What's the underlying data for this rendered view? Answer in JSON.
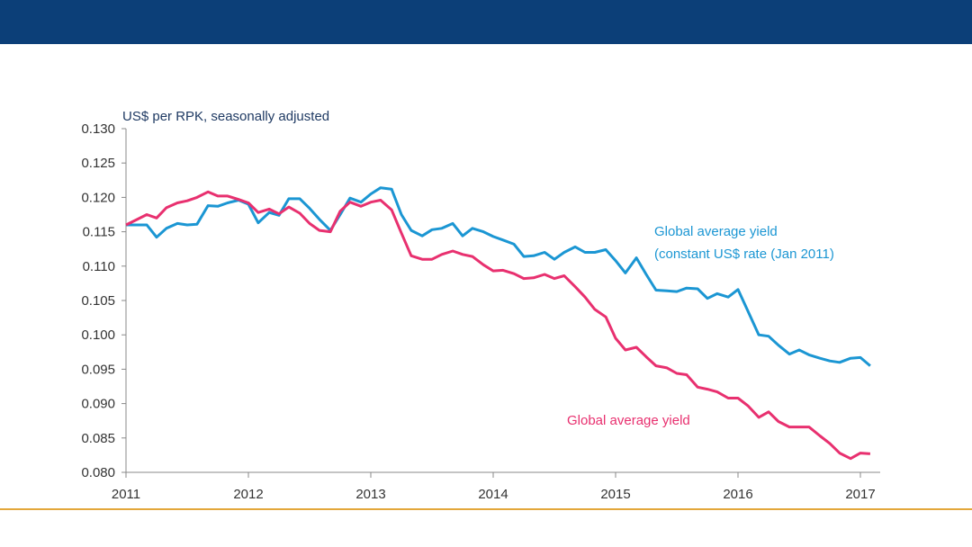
{
  "colors": {
    "banner": "#0c3f78",
    "footer_rule": "#e3a73a",
    "constant_series": "#1b96d3",
    "nominal_series": "#e8306f"
  },
  "chart_data": {
    "type": "line",
    "ylabel": "US$ per RPK, seasonally adjusted",
    "ylim": [
      0.08,
      0.13
    ],
    "yticks": [
      "0.130",
      "0.125",
      "0.120",
      "0.115",
      "0.110",
      "0.105",
      "0.100",
      "0.095",
      "0.090",
      "0.085",
      "0.080"
    ],
    "xlim": [
      2011,
      2017.2
    ],
    "xticks": [
      "2011",
      "2012",
      "2013",
      "2014",
      "2015",
      "2016",
      "2017"
    ],
    "grid": false,
    "series": [
      {
        "key": "constant",
        "label_line1": "Global average yield",
        "label_line2": "(constant US$ rate (Jan 2011)",
        "points": [
          [
            2011.0,
            0.116
          ],
          [
            2011.08,
            0.116
          ],
          [
            2011.17,
            0.116
          ],
          [
            2011.25,
            0.1142
          ],
          [
            2011.33,
            0.1155
          ],
          [
            2011.42,
            0.1162
          ],
          [
            2011.5,
            0.116
          ],
          [
            2011.58,
            0.1161
          ],
          [
            2011.67,
            0.1188
          ],
          [
            2011.75,
            0.1187
          ],
          [
            2011.83,
            0.1192
          ],
          [
            2011.92,
            0.1196
          ],
          [
            2012.0,
            0.119
          ],
          [
            2012.08,
            0.1163
          ],
          [
            2012.17,
            0.1178
          ],
          [
            2012.25,
            0.1174
          ],
          [
            2012.33,
            0.1198
          ],
          [
            2012.42,
            0.1198
          ],
          [
            2012.5,
            0.1184
          ],
          [
            2012.58,
            0.1168
          ],
          [
            2012.67,
            0.1152
          ],
          [
            2012.75,
            0.1175
          ],
          [
            2012.83,
            0.1199
          ],
          [
            2012.92,
            0.1193
          ],
          [
            2013.0,
            0.1205
          ],
          [
            2013.08,
            0.1214
          ],
          [
            2013.17,
            0.1212
          ],
          [
            2013.25,
            0.1175
          ],
          [
            2013.33,
            0.1152
          ],
          [
            2013.42,
            0.1144
          ],
          [
            2013.5,
            0.1153
          ],
          [
            2013.58,
            0.1155
          ],
          [
            2013.67,
            0.1162
          ],
          [
            2013.75,
            0.1144
          ],
          [
            2013.83,
            0.1155
          ],
          [
            2013.92,
            0.115
          ],
          [
            2014.0,
            0.1143
          ],
          [
            2014.08,
            0.1138
          ],
          [
            2014.17,
            0.1132
          ],
          [
            2014.25,
            0.1114
          ],
          [
            2014.33,
            0.1115
          ],
          [
            2014.42,
            0.112
          ],
          [
            2014.5,
            0.111
          ],
          [
            2014.58,
            0.112
          ],
          [
            2014.67,
            0.1128
          ],
          [
            2014.75,
            0.112
          ],
          [
            2014.83,
            0.112
          ],
          [
            2014.92,
            0.1124
          ],
          [
            2015.0,
            0.1108
          ],
          [
            2015.08,
            0.109
          ],
          [
            2015.17,
            0.1112
          ],
          [
            2015.25,
            0.1088
          ],
          [
            2015.33,
            0.1065
          ],
          [
            2015.42,
            0.1064
          ],
          [
            2015.5,
            0.1063
          ],
          [
            2015.58,
            0.1068
          ],
          [
            2015.67,
            0.1067
          ],
          [
            2015.75,
            0.1053
          ],
          [
            2015.83,
            0.106
          ],
          [
            2015.92,
            0.1055
          ],
          [
            2016.0,
            0.1066
          ],
          [
            2016.08,
            0.1035
          ],
          [
            2016.17,
            0.1
          ],
          [
            2016.25,
            0.0998
          ],
          [
            2016.33,
            0.0985
          ],
          [
            2016.42,
            0.0972
          ],
          [
            2016.5,
            0.0978
          ],
          [
            2016.58,
            0.0971
          ],
          [
            2016.67,
            0.0966
          ],
          [
            2016.75,
            0.0962
          ],
          [
            2016.83,
            0.096
          ],
          [
            2016.92,
            0.0966
          ],
          [
            2017.0,
            0.0967
          ],
          [
            2017.08,
            0.0955
          ]
        ]
      },
      {
        "key": "nominal",
        "label_line1": "Global average yield",
        "label_line2": "",
        "points": [
          [
            2011.0,
            0.116
          ],
          [
            2011.08,
            0.1167
          ],
          [
            2011.17,
            0.1175
          ],
          [
            2011.25,
            0.117
          ],
          [
            2011.33,
            0.1185
          ],
          [
            2011.42,
            0.1192
          ],
          [
            2011.5,
            0.1195
          ],
          [
            2011.58,
            0.12
          ],
          [
            2011.67,
            0.1208
          ],
          [
            2011.75,
            0.1202
          ],
          [
            2011.83,
            0.1202
          ],
          [
            2011.92,
            0.1197
          ],
          [
            2012.0,
            0.1192
          ],
          [
            2012.08,
            0.1178
          ],
          [
            2012.17,
            0.1183
          ],
          [
            2012.25,
            0.1176
          ],
          [
            2012.33,
            0.1186
          ],
          [
            2012.42,
            0.1177
          ],
          [
            2012.5,
            0.1162
          ],
          [
            2012.58,
            0.1152
          ],
          [
            2012.67,
            0.115
          ],
          [
            2012.75,
            0.118
          ],
          [
            2012.83,
            0.1193
          ],
          [
            2012.92,
            0.1187
          ],
          [
            2013.0,
            0.1193
          ],
          [
            2013.08,
            0.1196
          ],
          [
            2013.17,
            0.1182
          ],
          [
            2013.25,
            0.1148
          ],
          [
            2013.33,
            0.1115
          ],
          [
            2013.42,
            0.111
          ],
          [
            2013.5,
            0.111
          ],
          [
            2013.58,
            0.1117
          ],
          [
            2013.67,
            0.1122
          ],
          [
            2013.75,
            0.1117
          ],
          [
            2013.83,
            0.1114
          ],
          [
            2013.92,
            0.1102
          ],
          [
            2014.0,
            0.1093
          ],
          [
            2014.08,
            0.1094
          ],
          [
            2014.17,
            0.1089
          ],
          [
            2014.25,
            0.1082
          ],
          [
            2014.33,
            0.1083
          ],
          [
            2014.42,
            0.1088
          ],
          [
            2014.5,
            0.1082
          ],
          [
            2014.58,
            0.1086
          ],
          [
            2014.67,
            0.107
          ],
          [
            2014.75,
            0.1055
          ],
          [
            2014.83,
            0.1037
          ],
          [
            2014.92,
            0.1026
          ],
          [
            2015.0,
            0.0995
          ],
          [
            2015.08,
            0.0978
          ],
          [
            2015.17,
            0.0982
          ],
          [
            2015.25,
            0.0968
          ],
          [
            2015.33,
            0.0955
          ],
          [
            2015.42,
            0.0952
          ],
          [
            2015.5,
            0.0944
          ],
          [
            2015.58,
            0.0942
          ],
          [
            2015.67,
            0.0924
          ],
          [
            2015.75,
            0.0921
          ],
          [
            2015.83,
            0.0917
          ],
          [
            2015.92,
            0.0908
          ],
          [
            2016.0,
            0.0908
          ],
          [
            2016.08,
            0.0897
          ],
          [
            2016.17,
            0.088
          ],
          [
            2016.25,
            0.0888
          ],
          [
            2016.33,
            0.0874
          ],
          [
            2016.42,
            0.0866
          ],
          [
            2016.5,
            0.0866
          ],
          [
            2016.58,
            0.0866
          ],
          [
            2016.67,
            0.0853
          ],
          [
            2016.75,
            0.0842
          ],
          [
            2016.83,
            0.0828
          ],
          [
            2016.92,
            0.082
          ],
          [
            2017.0,
            0.0828
          ],
          [
            2017.08,
            0.0827
          ]
        ]
      }
    ]
  }
}
